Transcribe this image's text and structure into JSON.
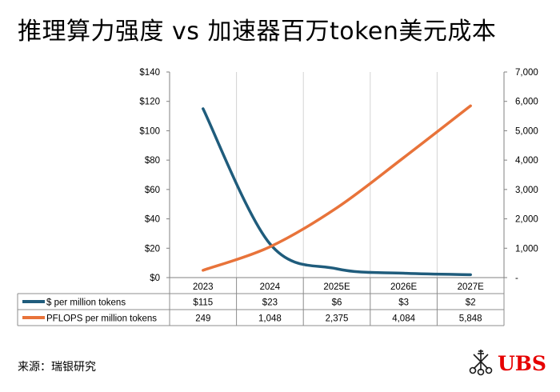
{
  "title": "推理算力强度 vs 加速器百万token美元成本",
  "source": "来源：瑞银研究",
  "logo_text": "UBS",
  "colors": {
    "series_cost": "#1f5c7c",
    "series_pflops": "#e8733a",
    "grid": "#d3d3d3",
    "axis": "#808080",
    "logo": "#e60000"
  },
  "chart_data": {
    "type": "line",
    "categories": [
      "2023",
      "2024",
      "2025E",
      "2026E",
      "2027E"
    ],
    "left_axis": {
      "min": 0,
      "max": 140,
      "step": 20,
      "tick_labels": [
        "$0",
        "$20",
        "$40",
        "$60",
        "$80",
        "$100",
        "$120",
        "$140"
      ]
    },
    "right_axis": {
      "min": 0,
      "max": 7000,
      "step": 1000,
      "tick_labels": [
        "-",
        "1,000",
        "2,000",
        "3,000",
        "4,000",
        "5,000",
        "6,000",
        "7,000"
      ]
    },
    "grid": "vertical",
    "series": [
      {
        "name": "$ per million tokens",
        "axis": "left",
        "values": [
          115,
          23,
          6,
          3,
          2
        ],
        "table_values": [
          "$115",
          "$23",
          "$6",
          "$3",
          "$2"
        ]
      },
      {
        "name": "PFLOPS per million tokens",
        "axis": "right",
        "values": [
          249,
          1048,
          2375,
          4084,
          5848
        ],
        "table_values": [
          "249",
          "1,048",
          "2,375",
          "4,084",
          "5,848"
        ]
      }
    ]
  }
}
